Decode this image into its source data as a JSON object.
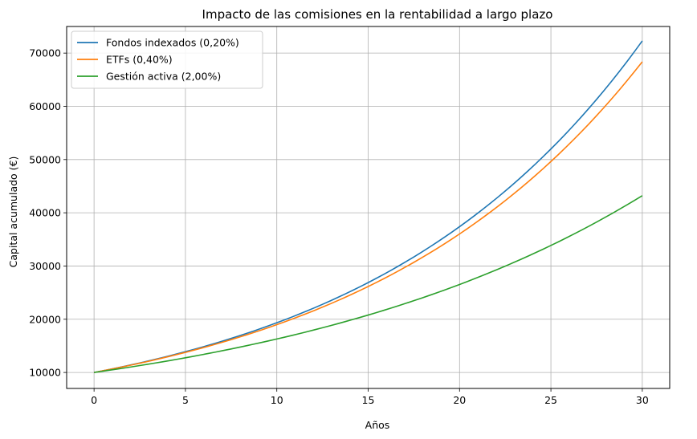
{
  "chart_data": {
    "type": "line",
    "title": "Impacto de las comisiones en la rentabilidad a largo plazo",
    "xlabel": "Años",
    "ylabel": "Capital acumulado (€)",
    "xlim": [
      -1.5,
      31.5
    ],
    "ylim": [
      7000,
      75000
    ],
    "xticks": [
      0,
      5,
      10,
      15,
      20,
      25,
      30
    ],
    "yticks": [
      10000,
      20000,
      30000,
      40000,
      50000,
      60000,
      70000
    ],
    "grid": true,
    "legend_position": "top-left",
    "x": [
      0,
      5,
      10,
      15,
      20,
      25,
      30
    ],
    "series": [
      {
        "name": "Fondos indexados (0,20%)",
        "color": "#1f77b4",
        "values": [
          10000,
          13905,
          19336,
          26888,
          37388,
          51989,
          72292
        ]
      },
      {
        "name": "ETFs (0,40%)",
        "color": "#ff7f0e",
        "values": [
          10000,
          13777,
          18980,
          26148,
          36024,
          49630,
          68372
        ]
      },
      {
        "name": "Gestión activa (2,00%)",
        "color": "#2ca02c",
        "values": [
          10000,
          12763,
          16289,
          20789,
          26533,
          33864,
          43219
        ]
      }
    ]
  }
}
